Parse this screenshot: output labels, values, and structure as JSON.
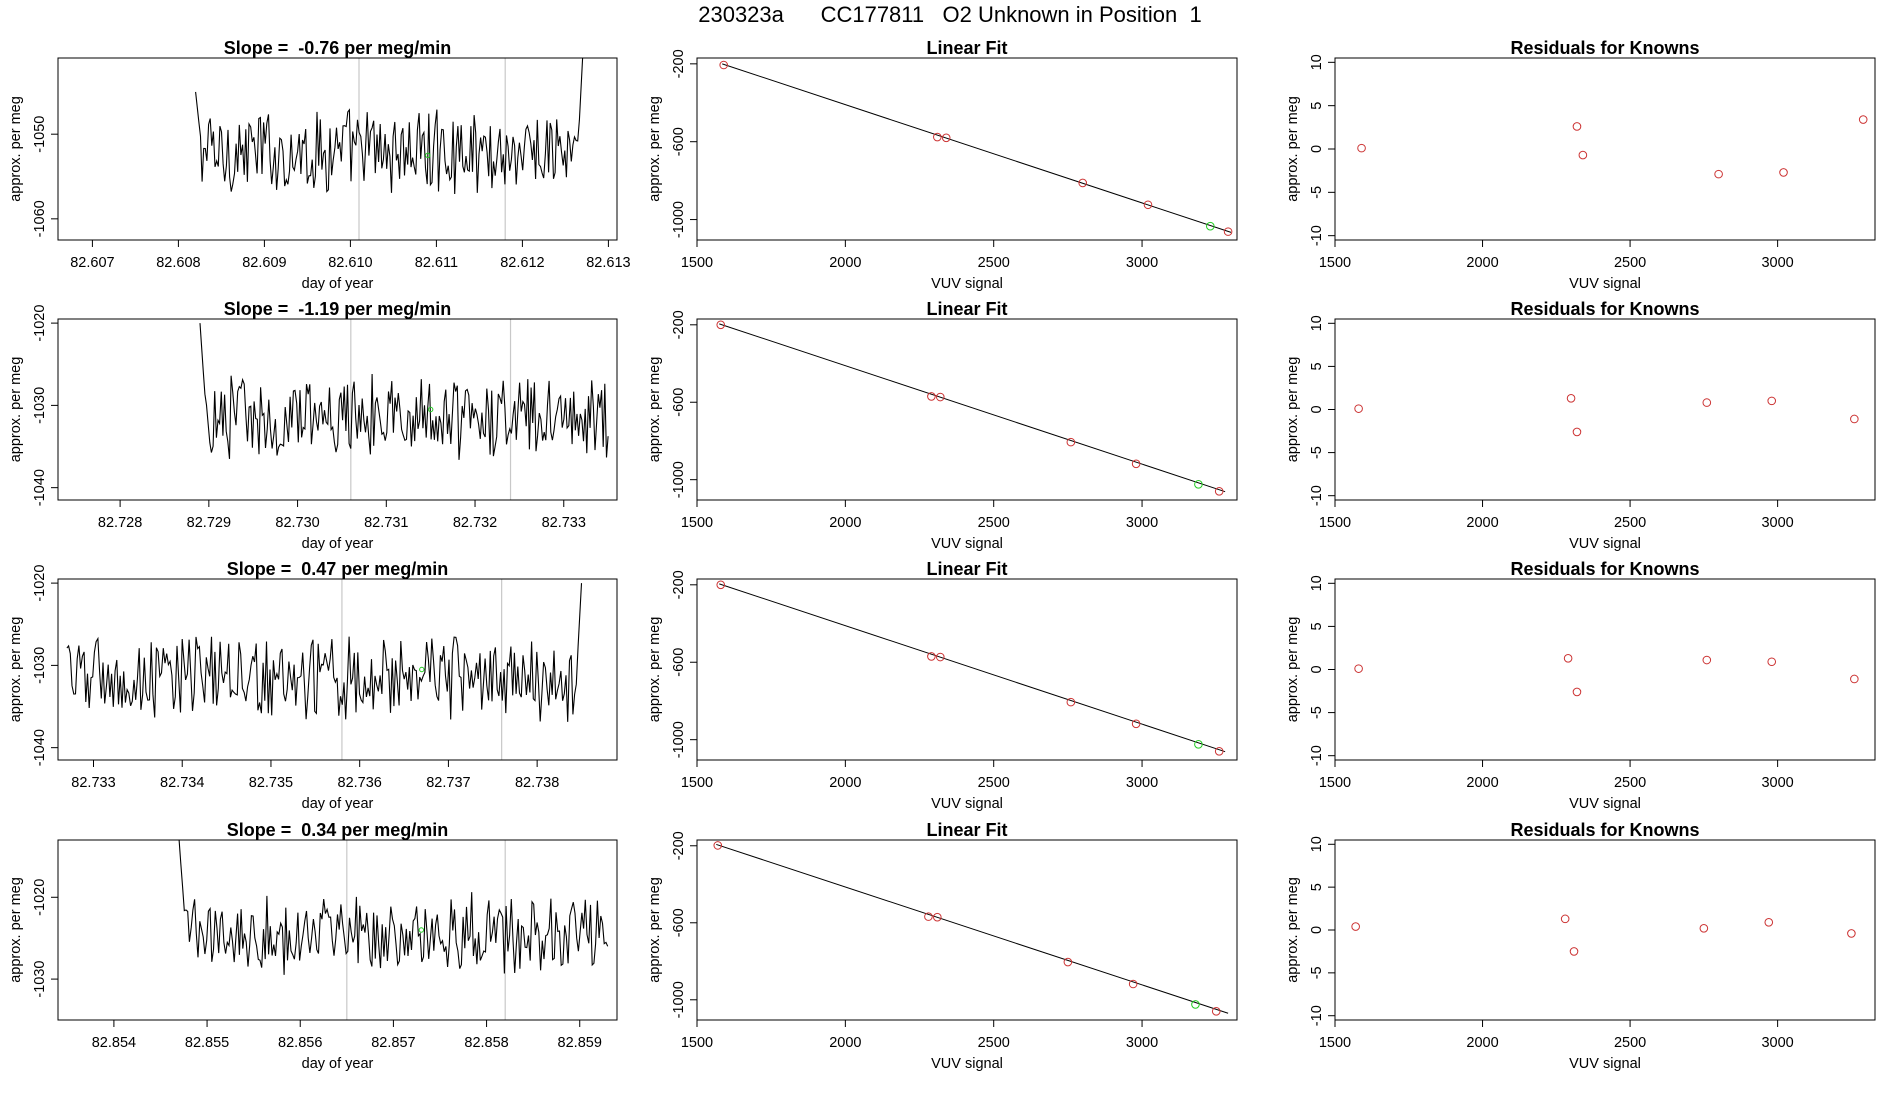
{
  "figure_title": {
    "run_id": "230323a",
    "cylinder": "CC177811",
    "description": "O2 Unknown in Position  1"
  },
  "colors": {
    "line": "#000000",
    "known_point": "#cc3333",
    "unknown_point": "#22cc22",
    "vline": "#c8c8c8"
  },
  "chart_data": [
    {
      "type": "line",
      "row": 0,
      "col": 0,
      "title_prefix": "Slope = ",
      "slope": "-0.76",
      "title_suffix": " per meg/min",
      "xlabel": "day of year",
      "ylabel": "approx. per meg",
      "xlim": [
        82.6066,
        82.6131
      ],
      "ylim": [
        -1062.5,
        -1041
      ],
      "xticks": [
        "82.607",
        "82.608",
        "82.609",
        "82.610",
        "82.611",
        "82.612",
        "82.613"
      ],
      "yticks": [
        "-1050",
        "-1060"
      ],
      "series_start": 82.6082,
      "series_end": 82.6127,
      "series_n": 240,
      "series_mean": -1052,
      "series_amp": 3.2,
      "start_spike": [
        82.6082,
        -1045
      ],
      "end_spike": [
        82.6127,
        -1041
      ],
      "vlines": [
        82.6101,
        82.6118
      ],
      "unknown_marker": [
        82.6109,
        -1052.5
      ]
    },
    {
      "type": "scatter_fit",
      "row": 0,
      "col": 1,
      "title": "Linear Fit",
      "xlabel": "VUV signal",
      "ylabel": "approx. per meg",
      "xlim": [
        1500,
        3320
      ],
      "ylim": [
        -1105,
        -170
      ],
      "xticks": [
        1500,
        2000,
        2500,
        3000
      ],
      "yticks": [
        -200,
        -600,
        -1000
      ],
      "points": [
        [
          1590,
          -206
        ],
        [
          2310,
          -576
        ],
        [
          2340,
          -580
        ],
        [
          2800,
          -812
        ],
        [
          3020,
          -924
        ],
        [
          3290,
          -1062
        ]
      ],
      "unknown": [
        3230,
        -1034
      ],
      "fit_line": [
        [
          1585,
          -200
        ],
        [
          3300,
          -1066
        ]
      ]
    },
    {
      "type": "scatter",
      "row": 0,
      "col": 2,
      "title": "Residuals for Knowns",
      "xlabel": "VUV signal",
      "ylabel": "approx. per meg",
      "xlim": [
        1500,
        3330
      ],
      "ylim": [
        -10.5,
        10.5
      ],
      "xticks": [
        1500,
        2000,
        2500,
        3000
      ],
      "yticks": [
        10,
        5,
        0,
        -5,
        -10
      ],
      "points": [
        [
          1590,
          0.1
        ],
        [
          2320,
          2.6
        ],
        [
          2340,
          -0.7
        ],
        [
          2800,
          -2.9
        ],
        [
          3020,
          -2.7
        ],
        [
          3290,
          3.4
        ]
      ]
    },
    {
      "type": "line",
      "row": 1,
      "col": 0,
      "title_prefix": "Slope = ",
      "slope": "-1.19",
      "title_suffix": " per meg/min",
      "xlabel": "day of year",
      "ylabel": "approx. per meg",
      "xlim": [
        82.7273,
        82.7336
      ],
      "ylim": [
        -1041.5,
        -1019.5
      ],
      "xticks": [
        "82.728",
        "82.729",
        "82.730",
        "82.731",
        "82.732",
        "82.733"
      ],
      "yticks": [
        "-1020",
        "-1030",
        "-1040"
      ],
      "series_start": 82.7289,
      "series_end": 82.7335,
      "series_n": 250,
      "series_mean": -1031.5,
      "series_amp": 3.2,
      "start_spike": [
        82.7289,
        -1020
      ],
      "end_spike": null,
      "vlines": [
        82.7306,
        82.7324
      ],
      "unknown_marker": [
        82.7315,
        -1030.5
      ]
    },
    {
      "type": "scatter_fit",
      "row": 1,
      "col": 1,
      "title": "Linear Fit",
      "xlabel": "VUV signal",
      "ylabel": "approx. per meg",
      "xlim": [
        1500,
        3320
      ],
      "ylim": [
        -1105,
        -170
      ],
      "xticks": [
        1500,
        2000,
        2500,
        3000
      ],
      "yticks": [
        -200,
        -600,
        -1000
      ],
      "points": [
        [
          1580,
          -200
        ],
        [
          2290,
          -570
        ],
        [
          2320,
          -573
        ],
        [
          2760,
          -806
        ],
        [
          2980,
          -918
        ],
        [
          3260,
          -1060
        ]
      ],
      "unknown": [
        3190,
        -1024
      ],
      "fit_line": [
        [
          1575,
          -195
        ],
        [
          3280,
          -1062
        ]
      ]
    },
    {
      "type": "scatter",
      "row": 1,
      "col": 2,
      "title": "Residuals for Knowns",
      "xlabel": "VUV signal",
      "ylabel": "approx. per meg",
      "xlim": [
        1500,
        3330
      ],
      "ylim": [
        -10.5,
        10.5
      ],
      "xticks": [
        1500,
        2000,
        2500,
        3000
      ],
      "yticks": [
        10,
        5,
        0,
        -5,
        -10
      ],
      "points": [
        [
          1580,
          0.1
        ],
        [
          2300,
          1.3
        ],
        [
          2320,
          -2.6
        ],
        [
          2760,
          0.8
        ],
        [
          2980,
          1.0
        ],
        [
          3260,
          -1.1
        ]
      ]
    },
    {
      "type": "line",
      "row": 2,
      "col": 0,
      "title_prefix": "Slope = ",
      "slope": "0.47",
      "title_suffix": " per meg/min",
      "xlabel": "day of year",
      "ylabel": "approx. per meg",
      "xlim": [
        82.7326,
        82.7389
      ],
      "ylim": [
        -1041.5,
        -1019.5
      ],
      "xticks": [
        "82.733",
        "82.734",
        "82.735",
        "82.736",
        "82.737",
        "82.738"
      ],
      "yticks": [
        "-1020",
        "-1030",
        "-1040"
      ],
      "series_start": 82.7327,
      "series_end": 82.7385,
      "series_n": 300,
      "series_mean": -1031.5,
      "series_amp": 3.2,
      "start_spike": null,
      "end_spike": [
        82.7385,
        -1020
      ],
      "vlines": [
        82.7358,
        82.7376
      ],
      "unknown_marker": [
        82.7367,
        -1030.5
      ]
    },
    {
      "type": "scatter_fit",
      "row": 2,
      "col": 1,
      "title": "Linear Fit",
      "xlabel": "VUV signal",
      "ylabel": "approx. per meg",
      "xlim": [
        1500,
        3320
      ],
      "ylim": [
        -1105,
        -170
      ],
      "xticks": [
        1500,
        2000,
        2500,
        3000
      ],
      "yticks": [
        -200,
        -600,
        -1000
      ],
      "points": [
        [
          1580,
          -200
        ],
        [
          2290,
          -570
        ],
        [
          2320,
          -573
        ],
        [
          2760,
          -806
        ],
        [
          2980,
          -918
        ],
        [
          3260,
          -1060
        ]
      ],
      "unknown": [
        3190,
        -1024
      ],
      "fit_line": [
        [
          1575,
          -195
        ],
        [
          3280,
          -1062
        ]
      ]
    },
    {
      "type": "scatter",
      "row": 2,
      "col": 2,
      "title": "Residuals for Knowns",
      "xlabel": "VUV signal",
      "ylabel": "approx. per meg",
      "xlim": [
        1500,
        3330
      ],
      "ylim": [
        -10.5,
        10.5
      ],
      "xticks": [
        1500,
        2000,
        2500,
        3000
      ],
      "yticks": [
        10,
        5,
        0,
        -5,
        -10
      ],
      "points": [
        [
          1580,
          0.1
        ],
        [
          2290,
          1.3
        ],
        [
          2320,
          -2.6
        ],
        [
          2760,
          1.1
        ],
        [
          2980,
          0.9
        ],
        [
          3260,
          -1.1
        ]
      ]
    },
    {
      "type": "line",
      "row": 3,
      "col": 0,
      "title_prefix": "Slope = ",
      "slope": "0.34",
      "title_suffix": " per meg/min",
      "xlabel": "day of year",
      "ylabel": "approx. per meg",
      "xlim": [
        82.8534,
        82.8594
      ],
      "ylim": [
        -1035,
        -1013
      ],
      "xticks": [
        "82.854",
        "82.855",
        "82.856",
        "82.857",
        "82.858",
        "82.859"
      ],
      "yticks": [
        "-1020",
        "-1030"
      ],
      "series_start": 82.8547,
      "series_end": 82.8593,
      "series_n": 250,
      "series_mean": -1024.5,
      "series_amp": 3.0,
      "start_spike": [
        82.8547,
        -1013
      ],
      "end_spike": null,
      "vlines": [
        82.8565,
        82.8582
      ],
      "unknown_marker": [
        82.8573,
        -1024
      ]
    },
    {
      "type": "scatter_fit",
      "row": 3,
      "col": 1,
      "title": "Linear Fit",
      "xlabel": "VUV signal",
      "ylabel": "approx. per meg",
      "xlim": [
        1500,
        3320
      ],
      "ylim": [
        -1105,
        -170
      ],
      "xticks": [
        1500,
        2000,
        2500,
        3000
      ],
      "yticks": [
        -200,
        -600,
        -1000
      ],
      "points": [
        [
          1570,
          -198
        ],
        [
          2280,
          -568
        ],
        [
          2310,
          -571
        ],
        [
          2750,
          -804
        ],
        [
          2970,
          -918
        ],
        [
          3250,
          -1060
        ]
      ],
      "unknown": [
        3180,
        -1024
      ],
      "fit_line": [
        [
          1565,
          -193
        ],
        [
          3290,
          -1070
        ]
      ]
    },
    {
      "type": "scatter",
      "row": 3,
      "col": 2,
      "title": "Residuals for Knowns",
      "xlabel": "VUV signal",
      "ylabel": "approx. per meg",
      "xlim": [
        1500,
        3330
      ],
      "ylim": [
        -10.5,
        10.5
      ],
      "xticks": [
        1500,
        2000,
        2500,
        3000
      ],
      "yticks": [
        10,
        5,
        0,
        -5,
        -10
      ],
      "points": [
        [
          1570,
          0.4
        ],
        [
          2280,
          1.3
        ],
        [
          2310,
          -2.5
        ],
        [
          2750,
          0.2
        ],
        [
          2970,
          0.9
        ],
        [
          3250,
          -0.4
        ]
      ]
    }
  ]
}
